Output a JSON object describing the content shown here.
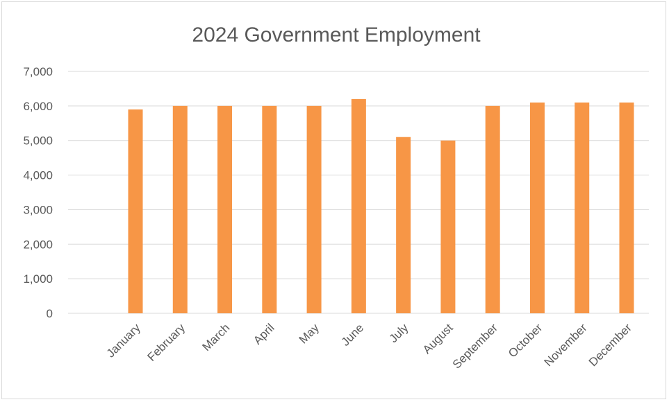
{
  "chart_data": {
    "type": "bar",
    "title": "2024 Government Employment",
    "categories": [
      "January",
      "February",
      "March",
      "April",
      "May",
      "June",
      "July",
      "August",
      "September",
      "October",
      "November",
      "December"
    ],
    "values": [
      5900,
      6000,
      6000,
      6000,
      6000,
      6200,
      5100,
      5000,
      6000,
      6100,
      6100,
      6100
    ],
    "ylim": [
      0,
      7000
    ],
    "yticks": [
      "0",
      "1,000",
      "2,000",
      "3,000",
      "4,000",
      "5,000",
      "6,000",
      "7,000"
    ],
    "grid": true,
    "legend": "none",
    "bar_color": "#f79646"
  }
}
